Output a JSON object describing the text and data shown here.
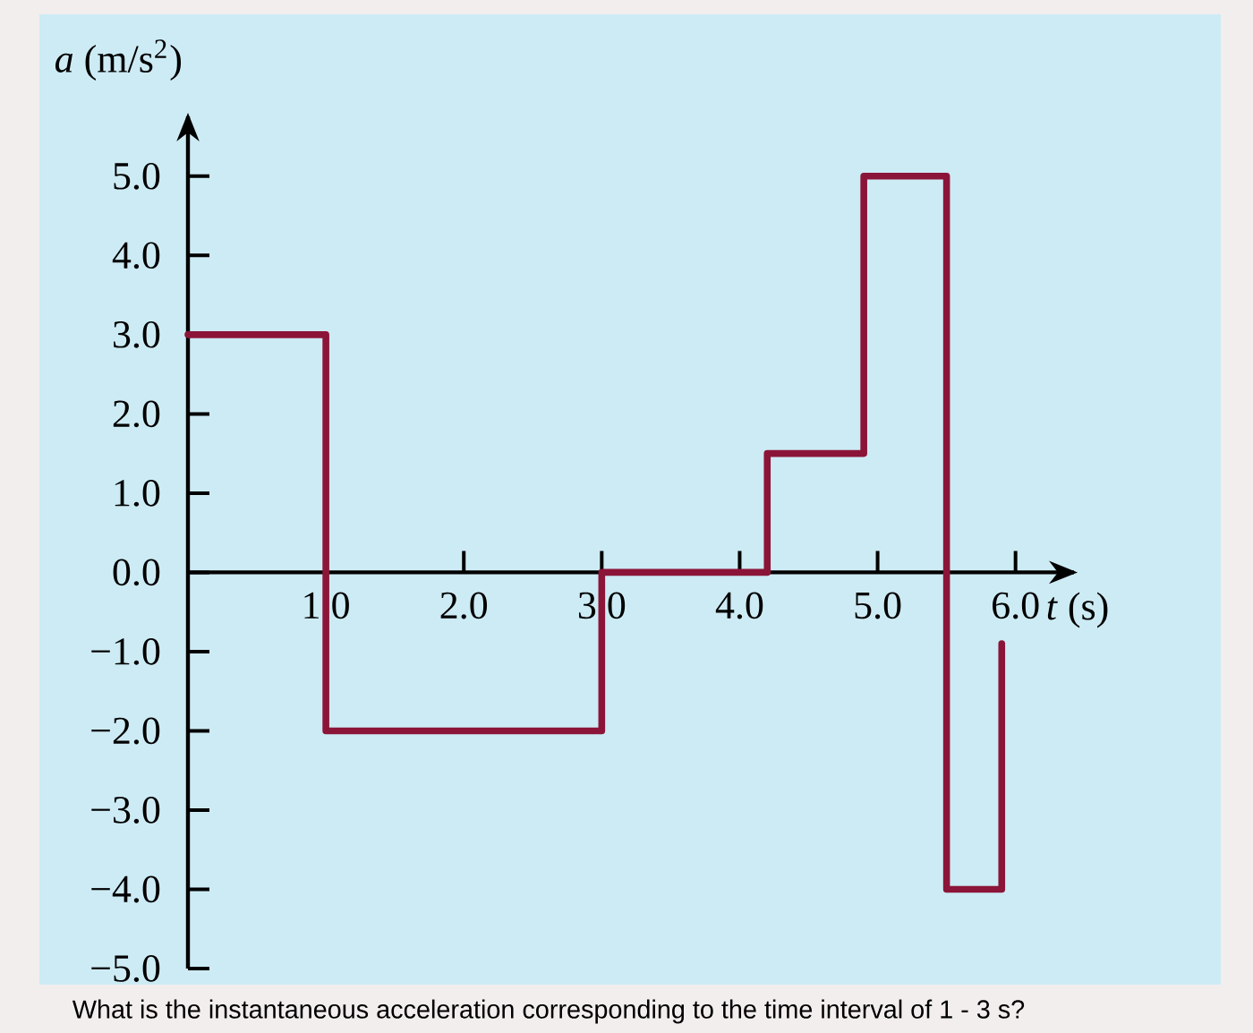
{
  "chart_data": {
    "type": "step",
    "xlabel": "*t* (s)",
    "ylabel": "*a* (m/s$^{2}$)",
    "annotations": [
      "What is the instantaneous acceleration corresponding to the time interval of 1 - 3 s?"
    ],
    "x": [
      0,
      1,
      3,
      4.2,
      4.9,
      5.5,
      5.9
    ],
    "series": [
      {
        "color": "#8b1538",
        "values": [
          3,
          -2,
          0,
          1.5,
          5,
          -4,
          -0.9
        ]
      }
    ],
    "xlim": [
      0,
      6.45
    ],
    "ylim": [
      -5,
      5.8
    ],
    "xticks": [
      {
        "value": 1,
        "label": "1.0"
      },
      {
        "value": 2,
        "label": "2.0"
      },
      {
        "value": 3,
        "label": "3.0"
      },
      {
        "value": 4,
        "label": "4.0"
      },
      {
        "value": 5,
        "label": "5.0"
      },
      {
        "value": 6,
        "label": "6.0"
      }
    ],
    "yticks": [
      {
        "value": -5,
        "label": "−5.0"
      },
      {
        "value": -4,
        "label": "−4.0"
      },
      {
        "value": -3,
        "label": "−3.0"
      },
      {
        "value": -2,
        "label": "−2.0"
      },
      {
        "value": -1,
        "label": "−1.0"
      },
      {
        "value": 0,
        "label": "0.0"
      },
      {
        "value": 1,
        "label": "1.0"
      },
      {
        "value": 2,
        "label": "2.0"
      },
      {
        "value": 3,
        "label": "3.0"
      },
      {
        "value": 4,
        "label": "4.0"
      },
      {
        "value": 5,
        "label": "5.0"
      }
    ],
    "line_style": "solid"
  }
}
